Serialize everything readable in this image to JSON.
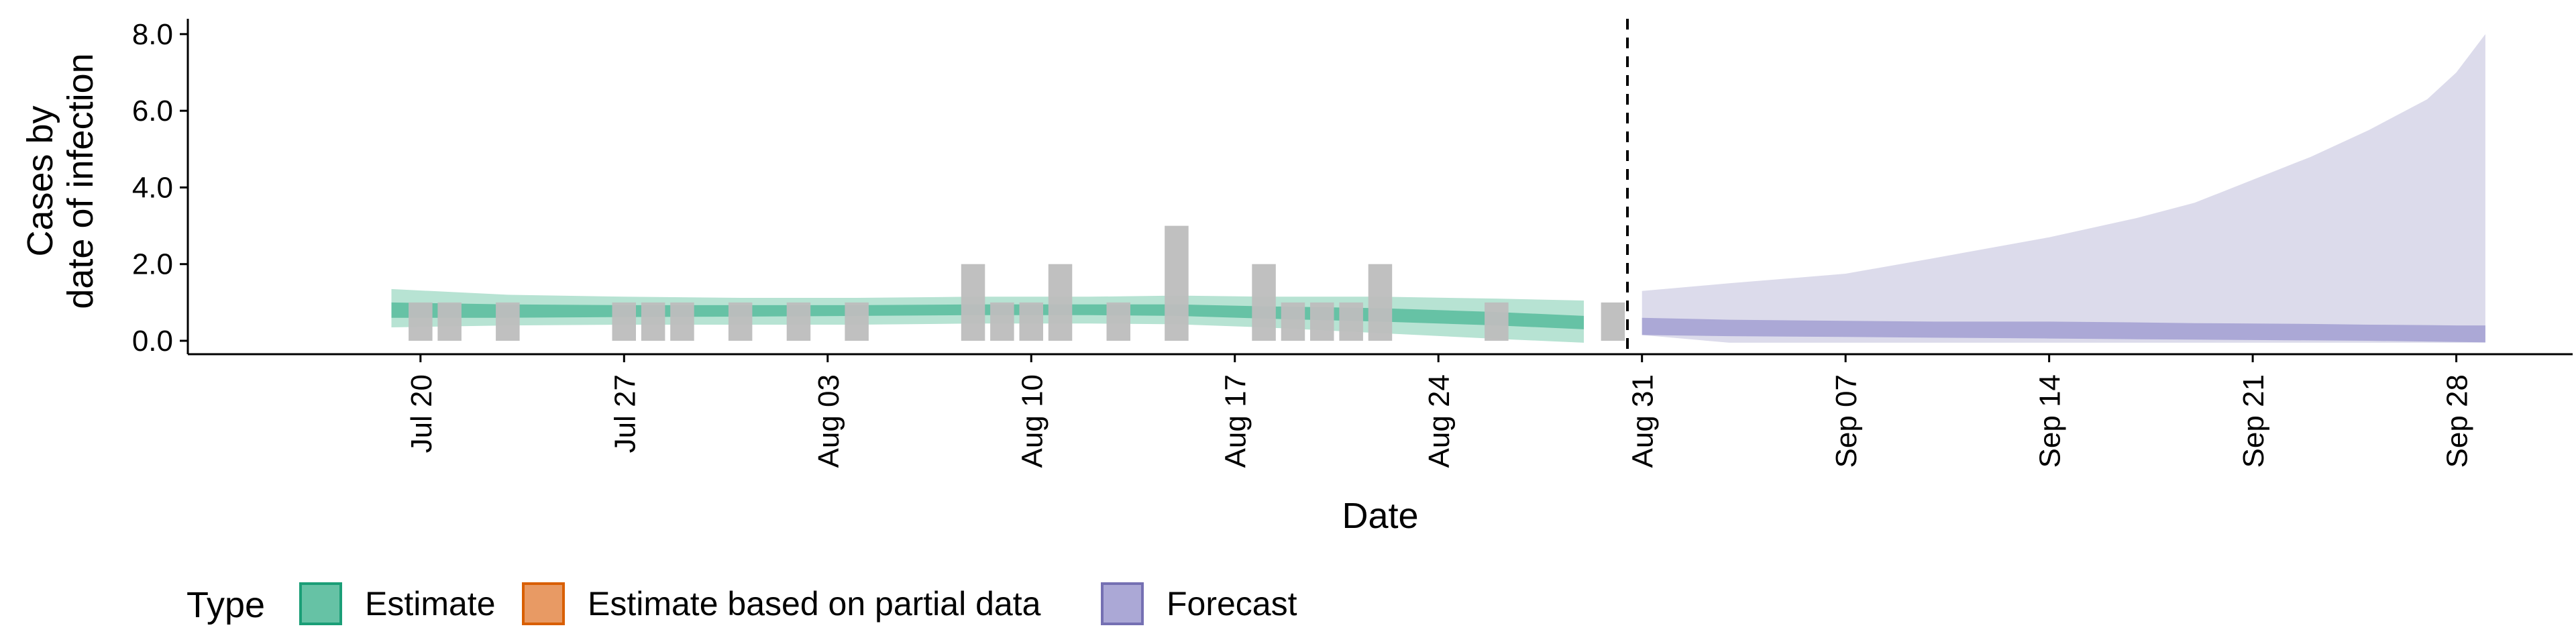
{
  "chart_data": {
    "type": "area",
    "title": "",
    "xlabel": "Date",
    "ylabel_lines": [
      "Cases by",
      "date of infection"
    ],
    "ylim": [
      -0.35,
      8.4
    ],
    "yticks": [
      0,
      2,
      4,
      6,
      8
    ],
    "ytick_labels": [
      "0.0",
      "2.0",
      "4.0",
      "6.0",
      "8.0"
    ],
    "xlim": [
      "2020-07-12",
      "2020-10-02"
    ],
    "xticks": [
      "2020-07-20",
      "2020-07-27",
      "2020-08-03",
      "2020-08-10",
      "2020-08-17",
      "2020-08-24",
      "2020-08-31",
      "2020-09-07",
      "2020-09-14",
      "2020-09-21",
      "2020-09-28"
    ],
    "xtick_labels": [
      "Jul 20",
      "Jul 27",
      "Aug 03",
      "Aug 10",
      "Aug 17",
      "Aug 24",
      "Aug 31",
      "Sep 07",
      "Sep 14",
      "Sep 21",
      "Sep 28"
    ],
    "forecast_start": "2020-08-30",
    "legend": {
      "title": "Type",
      "position": "bottom-left",
      "items": [
        {
          "label": "Estimate",
          "fill": "#66c2a5",
          "stroke": "#1b9e77"
        },
        {
          "label": "Estimate based on partial data",
          "fill": "#e89a64",
          "stroke": "#d95f02"
        },
        {
          "label": "Forecast",
          "fill": "#aba8d6",
          "stroke": "#7570b3"
        }
      ]
    },
    "colors": {
      "estimate_outer": "#b7e3d3",
      "estimate_inner": "#66c2a5",
      "forecast_outer": "#dcdbeb",
      "forecast_inner": "#aba8d6",
      "bars": "#bdbdbd",
      "vline": "#000000"
    },
    "reported_cases": {
      "dates": [
        "2020-07-20",
        "2020-07-21",
        "2020-07-23",
        "2020-07-27",
        "2020-07-28",
        "2020-07-29",
        "2020-07-31",
        "2020-08-02",
        "2020-08-04",
        "2020-08-08",
        "2020-08-09",
        "2020-08-10",
        "2020-08-11",
        "2020-08-13",
        "2020-08-15",
        "2020-08-18",
        "2020-08-19",
        "2020-08-20",
        "2020-08-21",
        "2020-08-22",
        "2020-08-26",
        "2020-08-30"
      ],
      "values": [
        1,
        1,
        1,
        1,
        1,
        1,
        1,
        1,
        1,
        2,
        1,
        1,
        2,
        1,
        3,
        2,
        1,
        1,
        1,
        2,
        1,
        1
      ]
    },
    "estimate": {
      "dates": [
        "2020-07-19",
        "2020-07-23",
        "2020-07-27",
        "2020-07-31",
        "2020-08-04",
        "2020-08-08",
        "2020-08-12",
        "2020-08-15",
        "2020-08-18",
        "2020-08-22",
        "2020-08-26",
        "2020-08-29"
      ],
      "outer_lower": [
        0.35,
        0.4,
        0.42,
        0.42,
        0.42,
        0.45,
        0.45,
        0.43,
        0.35,
        0.2,
        0.05,
        -0.05
      ],
      "outer_upper": [
        1.35,
        1.2,
        1.15,
        1.12,
        1.12,
        1.15,
        1.15,
        1.18,
        1.15,
        1.15,
        1.1,
        1.05
      ],
      "inner_lower": [
        0.6,
        0.6,
        0.62,
        0.63,
        0.65,
        0.67,
        0.67,
        0.65,
        0.58,
        0.5,
        0.4,
        0.3
      ],
      "inner_upper": [
        1.0,
        0.95,
        0.93,
        0.93,
        0.93,
        0.95,
        0.95,
        0.95,
        0.9,
        0.85,
        0.75,
        0.65
      ]
    },
    "forecast": {
      "dates": [
        "2020-08-31",
        "2020-09-03",
        "2020-09-07",
        "2020-09-10",
        "2020-09-14",
        "2020-09-17",
        "2020-09-19",
        "2020-09-21",
        "2020-09-23",
        "2020-09-25",
        "2020-09-27",
        "2020-09-28",
        "2020-09-29"
      ],
      "outer_lower": [
        0.15,
        -0.05,
        -0.05,
        -0.05,
        -0.05,
        -0.05,
        -0.05,
        -0.05,
        -0.05,
        -0.05,
        -0.05,
        -0.05,
        -0.05
      ],
      "outer_upper": [
        1.3,
        1.5,
        1.75,
        2.15,
        2.7,
        3.2,
        3.6,
        4.2,
        4.8,
        5.5,
        6.3,
        7.0,
        8.0
      ],
      "inner_lower": [
        0.15,
        0.12,
        0.1,
        0.08,
        0.06,
        0.04,
        0.03,
        0.02,
        0.01,
        0.0,
        -0.02,
        -0.03,
        -0.04
      ],
      "inner_upper": [
        0.6,
        0.55,
        0.52,
        0.5,
        0.5,
        0.48,
        0.46,
        0.45,
        0.44,
        0.42,
        0.41,
        0.4,
        0.4
      ]
    }
  }
}
